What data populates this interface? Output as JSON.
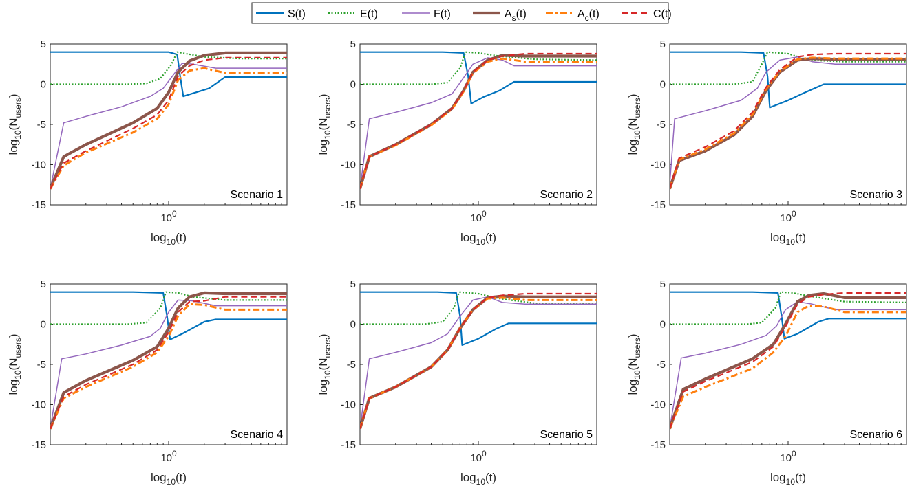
{
  "legend": {
    "entries": [
      {
        "label": "S(t)",
        "color": "#0072BD",
        "style": "solid",
        "width": 2.2
      },
      {
        "label": "E(t)",
        "color": "#2CA02C",
        "style": "dotted",
        "width": 2.2
      },
      {
        "label": "F(t)",
        "color": "#9467BD",
        "style": "solid",
        "width": 1.5
      },
      {
        "label": "A",
        "sub": "s",
        "suffix": "(t)",
        "color": "#8C564B",
        "style": "solid",
        "width": 4.2
      },
      {
        "label": "A",
        "sub": "c",
        "suffix": "(t)",
        "color": "#FF7F0E",
        "style": "dashdot",
        "width": 3
      },
      {
        "label": "C(t)",
        "color": "#D62728",
        "style": "dashed",
        "width": 2.2
      }
    ]
  },
  "chart_data": [
    {
      "type": "line",
      "title": "Scenario 1",
      "ylabel": "log10(N_users)",
      "xlabel": "log10(t)",
      "ylim": [
        -15,
        5
      ],
      "yticks": [
        -15,
        -10,
        -5,
        0,
        5
      ],
      "xtick_label": "10^0",
      "x_scale": "log",
      "series": [
        {
          "name": "S(t)",
          "x": [
            0.1,
            0.5,
            1.0,
            1.18,
            1.25,
            1.33,
            2.2,
            3.0,
            10
          ],
          "y": [
            4,
            4,
            4,
            3.7,
            1.0,
            -1.5,
            -0.5,
            0.9,
            0.9
          ]
        },
        {
          "name": "E(t)",
          "x": [
            0.1,
            0.45,
            0.65,
            0.85,
            1.05,
            1.18,
            1.4,
            2.0,
            4,
            10
          ],
          "y": [
            0,
            0,
            0.1,
            0.7,
            2.4,
            4.0,
            3.8,
            3.4,
            3.2,
            3.2
          ]
        },
        {
          "name": "F(t)",
          "x": [
            0.1,
            0.13,
            0.2,
            0.4,
            0.7,
            0.9,
            1.1,
            1.3,
            1.6,
            2.5,
            10
          ],
          "y": [
            -13,
            -4.8,
            -4.0,
            -2.8,
            -1.5,
            -0.5,
            1.2,
            2.6,
            2.5,
            2.0,
            2.0
          ]
        },
        {
          "name": "As(t)",
          "x": [
            0.1,
            0.13,
            0.2,
            0.5,
            0.8,
            1.0,
            1.2,
            1.5,
            2.0,
            3.0,
            10
          ],
          "y": [
            -13,
            -9.0,
            -7.5,
            -4.8,
            -3.0,
            -1.0,
            1.5,
            2.9,
            3.6,
            3.9,
            3.9
          ]
        },
        {
          "name": "Ac(t)",
          "x": [
            0.1,
            0.13,
            0.2,
            0.5,
            0.8,
            1.0,
            1.2,
            1.5,
            2.0,
            3.0,
            10
          ],
          "y": [
            -13,
            -10.1,
            -8.5,
            -6.0,
            -4.3,
            -2.5,
            0.5,
            1.7,
            2.0,
            1.4,
            1.4
          ]
        },
        {
          "name": "C(t)",
          "x": [
            0.1,
            0.13,
            0.2,
            0.5,
            0.8,
            1.0,
            1.2,
            1.5,
            2.0,
            3.0,
            10
          ],
          "y": [
            -13,
            -9.8,
            -8.3,
            -5.5,
            -3.8,
            -2.0,
            1.0,
            2.3,
            3.0,
            3.3,
            3.3
          ]
        }
      ]
    },
    {
      "type": "line",
      "title": "Scenario 2",
      "ylabel": "log10(N_users)",
      "xlabel": "log10(t)",
      "ylim": [
        -15,
        5
      ],
      "yticks": [
        -15,
        -10,
        -5,
        0,
        5
      ],
      "xtick_label": "10^0",
      "x_scale": "log",
      "series": [
        {
          "name": "S(t)",
          "x": [
            0.1,
            0.5,
            0.75,
            0.82,
            0.87,
            1.1,
            1.5,
            2.0,
            10
          ],
          "y": [
            4,
            4,
            3.9,
            1.0,
            -2.4,
            -1.6,
            -0.8,
            0.3,
            0.3
          ]
        },
        {
          "name": "E(t)",
          "x": [
            0.1,
            0.4,
            0.55,
            0.7,
            0.78,
            1.0,
            1.5,
            3,
            10
          ],
          "y": [
            0,
            0,
            0.2,
            2.0,
            4.0,
            3.9,
            3.5,
            3.1,
            3.0
          ]
        },
        {
          "name": "F(t)",
          "x": [
            0.1,
            0.12,
            0.2,
            0.4,
            0.6,
            0.75,
            0.9,
            1.2,
            1.6,
            2.0,
            10
          ],
          "y": [
            -13,
            -4.3,
            -3.5,
            -2.3,
            -1.2,
            0.8,
            2.5,
            3.3,
            3.0,
            2.3,
            2.3
          ]
        },
        {
          "name": "As(t)",
          "x": [
            0.1,
            0.12,
            0.2,
            0.4,
            0.6,
            0.75,
            0.9,
            1.2,
            1.6,
            2.5,
            10
          ],
          "y": [
            -13,
            -9.0,
            -7.5,
            -5.0,
            -3.0,
            -0.8,
            1.5,
            3.0,
            3.6,
            3.5,
            3.5
          ]
        },
        {
          "name": "Ac(t)",
          "x": [
            0.1,
            0.12,
            0.2,
            0.4,
            0.6,
            0.75,
            0.9,
            1.2,
            1.6,
            2.5,
            10
          ],
          "y": [
            -13,
            -9.0,
            -7.6,
            -5.1,
            -3.1,
            -0.9,
            1.4,
            2.8,
            3.2,
            2.8,
            2.8
          ]
        },
        {
          "name": "C(t)",
          "x": [
            0.1,
            0.12,
            0.2,
            0.4,
            0.6,
            0.75,
            0.9,
            1.2,
            1.6,
            2.5,
            10
          ],
          "y": [
            -13,
            -9.0,
            -7.5,
            -5.0,
            -3.0,
            -0.8,
            1.5,
            3.0,
            3.5,
            3.8,
            3.8
          ]
        }
      ]
    },
    {
      "type": "line",
      "title": "Scenario 3",
      "ylabel": "log10(N_users)",
      "xlabel": "log10(t)",
      "ylim": [
        -15,
        5
      ],
      "yticks": [
        -15,
        -10,
        -5,
        0,
        5
      ],
      "xtick_label": "10^0",
      "x_scale": "log",
      "series": [
        {
          "name": "S(t)",
          "x": [
            0.1,
            0.4,
            0.62,
            0.67,
            0.7,
            1.0,
            1.4,
            2.0,
            10
          ],
          "y": [
            4,
            4,
            3.9,
            1.0,
            -2.9,
            -2.0,
            -1.0,
            0.0,
            0.0
          ]
        },
        {
          "name": "E(t)",
          "x": [
            0.1,
            0.35,
            0.5,
            0.6,
            0.67,
            1.0,
            1.5,
            3,
            10
          ],
          "y": [
            0,
            0,
            0.3,
            2.5,
            4.0,
            3.8,
            3.0,
            2.8,
            2.8
          ]
        },
        {
          "name": "F(t)",
          "x": [
            0.1,
            0.11,
            0.2,
            0.4,
            0.55,
            0.65,
            0.85,
            1.2,
            1.6,
            2.5,
            10
          ],
          "y": [
            -12.5,
            -4.3,
            -3.3,
            -2.0,
            -0.5,
            1.5,
            3.0,
            3.4,
            2.8,
            2.5,
            2.5
          ]
        },
        {
          "name": "As(t)",
          "x": [
            0.1,
            0.12,
            0.2,
            0.35,
            0.5,
            0.65,
            0.85,
            1.2,
            1.6,
            2.5,
            10
          ],
          "y": [
            -13,
            -9.5,
            -8.3,
            -6.3,
            -4.0,
            -0.8,
            1.5,
            3.0,
            3.2,
            3.1,
            3.1
          ]
        },
        {
          "name": "Ac(t)",
          "x": [
            0.1,
            0.12,
            0.2,
            0.35,
            0.5,
            0.65,
            0.85,
            1.2,
            1.6,
            2.5,
            10
          ],
          "y": [
            -13,
            -9.4,
            -8.1,
            -6.1,
            -3.8,
            -0.6,
            1.6,
            3.1,
            3.3,
            3.2,
            3.2
          ]
        },
        {
          "name": "C(t)",
          "x": [
            0.1,
            0.12,
            0.2,
            0.35,
            0.5,
            0.65,
            0.85,
            1.2,
            1.6,
            2.5,
            10
          ],
          "y": [
            -13,
            -9.2,
            -7.8,
            -5.8,
            -3.5,
            -0.4,
            1.8,
            3.4,
            3.7,
            3.8,
            3.8
          ]
        }
      ]
    },
    {
      "type": "line",
      "title": "Scenario 4",
      "ylabel": "log10(N_users)",
      "xlabel": "log10(t)",
      "ylim": [
        -15,
        5
      ],
      "yticks": [
        -15,
        -10,
        -5,
        0,
        5
      ],
      "xtick_label": "10^0",
      "x_scale": "log",
      "series": [
        {
          "name": "S(t)",
          "x": [
            0.1,
            0.5,
            0.9,
            0.97,
            1.03,
            1.3,
            2.0,
            2.5,
            10
          ],
          "y": [
            4,
            4,
            3.9,
            1.0,
            -1.9,
            -1.2,
            0.3,
            0.6,
            0.6
          ]
        },
        {
          "name": "E(t)",
          "x": [
            0.1,
            0.45,
            0.65,
            0.85,
            0.95,
            1.2,
            1.6,
            3,
            10
          ],
          "y": [
            0,
            0,
            0.2,
            2.0,
            4.0,
            3.9,
            3.4,
            3.0,
            3.0
          ]
        },
        {
          "name": "F(t)",
          "x": [
            0.1,
            0.125,
            0.2,
            0.4,
            0.7,
            0.85,
            1.0,
            1.2,
            1.6,
            2.5,
            10
          ],
          "y": [
            -13,
            -4.3,
            -3.7,
            -2.6,
            -1.5,
            -0.5,
            1.5,
            3.0,
            2.9,
            2.3,
            2.3
          ]
        },
        {
          "name": "As(t)",
          "x": [
            0.1,
            0.13,
            0.2,
            0.5,
            0.8,
            1.0,
            1.2,
            1.5,
            2.0,
            3.0,
            10
          ],
          "y": [
            -13,
            -8.5,
            -7.0,
            -4.5,
            -2.8,
            -0.5,
            2.0,
            3.4,
            3.9,
            3.8,
            3.8
          ]
        },
        {
          "name": "Ac(t)",
          "x": [
            0.1,
            0.13,
            0.2,
            0.5,
            0.8,
            1.0,
            1.2,
            1.5,
            2.0,
            3.0,
            10
          ],
          "y": [
            -13,
            -9.2,
            -7.8,
            -5.3,
            -3.5,
            -1.5,
            1.0,
            2.5,
            2.4,
            1.8,
            1.8
          ]
        },
        {
          "name": "C(t)",
          "x": [
            0.1,
            0.13,
            0.2,
            0.5,
            0.8,
            1.0,
            1.2,
            1.5,
            2.0,
            3.0,
            10
          ],
          "y": [
            -13,
            -9.0,
            -7.5,
            -5.0,
            -3.2,
            -1.0,
            1.5,
            2.8,
            2.9,
            3.4,
            3.4
          ]
        }
      ]
    },
    {
      "type": "line",
      "title": "Scenario 5",
      "ylabel": "log10(N_users)",
      "xlabel": "log10(t)",
      "ylim": [
        -15,
        5
      ],
      "yticks": [
        -15,
        -10,
        -5,
        0,
        5
      ],
      "xtick_label": "10^0",
      "x_scale": "log",
      "series": [
        {
          "name": "S(t)",
          "x": [
            0.1,
            0.45,
            0.65,
            0.7,
            0.73,
            1.0,
            1.4,
            1.8,
            10
          ],
          "y": [
            4,
            4,
            3.9,
            1.0,
            -2.6,
            -1.8,
            -0.6,
            0.1,
            0.1
          ]
        },
        {
          "name": "E(t)",
          "x": [
            0.1,
            0.35,
            0.5,
            0.62,
            0.69,
            1.0,
            1.5,
            3,
            10
          ],
          "y": [
            0,
            0,
            0.3,
            2.0,
            4.0,
            3.8,
            3.2,
            2.6,
            2.5
          ]
        },
        {
          "name": "F(t)",
          "x": [
            0.1,
            0.12,
            0.2,
            0.4,
            0.55,
            0.7,
            0.9,
            1.2,
            1.6,
            2.5,
            10
          ],
          "y": [
            -13,
            -4.3,
            -3.5,
            -2.3,
            -1.2,
            1.0,
            3.0,
            3.4,
            2.7,
            2.5,
            2.5
          ]
        },
        {
          "name": "As(t)",
          "x": [
            0.1,
            0.12,
            0.2,
            0.4,
            0.55,
            0.7,
            0.9,
            1.2,
            1.6,
            2.5,
            10
          ],
          "y": [
            -13,
            -9.2,
            -7.8,
            -5.3,
            -3.2,
            -0.5,
            1.8,
            3.3,
            3.5,
            3.4,
            3.4
          ]
        },
        {
          "name": "Ac(t)",
          "x": [
            0.1,
            0.12,
            0.2,
            0.4,
            0.55,
            0.7,
            0.9,
            1.2,
            1.6,
            2.5,
            10
          ],
          "y": [
            -13,
            -9.2,
            -7.8,
            -5.3,
            -3.2,
            -0.5,
            1.8,
            3.2,
            3.3,
            3.0,
            3.0
          ]
        },
        {
          "name": "C(t)",
          "x": [
            0.1,
            0.12,
            0.2,
            0.4,
            0.55,
            0.7,
            0.9,
            1.2,
            1.6,
            2.5,
            10
          ],
          "y": [
            -13,
            -9.2,
            -7.8,
            -5.3,
            -3.2,
            -0.5,
            1.8,
            3.3,
            3.6,
            3.8,
            3.8
          ]
        }
      ]
    },
    {
      "type": "line",
      "title": "Scenario 6",
      "ylabel": "log10(N_users)",
      "xlabel": "log10(t)",
      "ylim": [
        -15,
        5
      ],
      "yticks": [
        -15,
        -10,
        -5,
        0,
        5
      ],
      "xtick_label": "10^0",
      "x_scale": "log",
      "series": [
        {
          "name": "S(t)",
          "x": [
            0.1,
            0.5,
            0.82,
            0.88,
            0.93,
            1.2,
            1.8,
            2.2,
            10
          ],
          "y": [
            4,
            4,
            3.9,
            1.0,
            -1.8,
            -1.2,
            0.3,
            0.7,
            0.7
          ]
        },
        {
          "name": "E(t)",
          "x": [
            0.1,
            0.45,
            0.6,
            0.78,
            0.87,
            1.1,
            1.5,
            3,
            10
          ],
          "y": [
            0,
            0,
            0.2,
            2.0,
            4.0,
            3.9,
            3.5,
            2.8,
            2.7
          ]
        },
        {
          "name": "F(t)",
          "x": [
            0.1,
            0.125,
            0.2,
            0.4,
            0.65,
            0.8,
            0.95,
            1.2,
            1.6,
            2.5,
            10
          ],
          "y": [
            -13,
            -4.2,
            -3.6,
            -2.5,
            -1.4,
            -0.2,
            1.8,
            2.8,
            2.5,
            1.8,
            1.8
          ]
        },
        {
          "name": "As(t)",
          "x": [
            0.1,
            0.13,
            0.2,
            0.5,
            0.75,
            0.95,
            1.2,
            1.5,
            2.0,
            3.0,
            10
          ],
          "y": [
            -13,
            -8.1,
            -6.8,
            -4.3,
            -2.5,
            0.0,
            2.8,
            3.6,
            3.8,
            3.3,
            3.3
          ]
        },
        {
          "name": "Ac(t)",
          "x": [
            0.1,
            0.13,
            0.2,
            0.5,
            0.75,
            0.95,
            1.2,
            1.5,
            2.0,
            3.0,
            10
          ],
          "y": [
            -13,
            -9.0,
            -7.8,
            -5.5,
            -3.5,
            -1.5,
            1.5,
            2.3,
            2.2,
            1.5,
            1.5
          ]
        },
        {
          "name": "C(t)",
          "x": [
            0.1,
            0.13,
            0.2,
            0.5,
            0.75,
            0.95,
            1.2,
            1.5,
            2.0,
            3.0,
            10
          ],
          "y": [
            -13,
            -8.4,
            -7.1,
            -4.7,
            -2.8,
            -0.3,
            2.5,
            3.4,
            3.7,
            3.9,
            3.9
          ]
        }
      ]
    }
  ]
}
